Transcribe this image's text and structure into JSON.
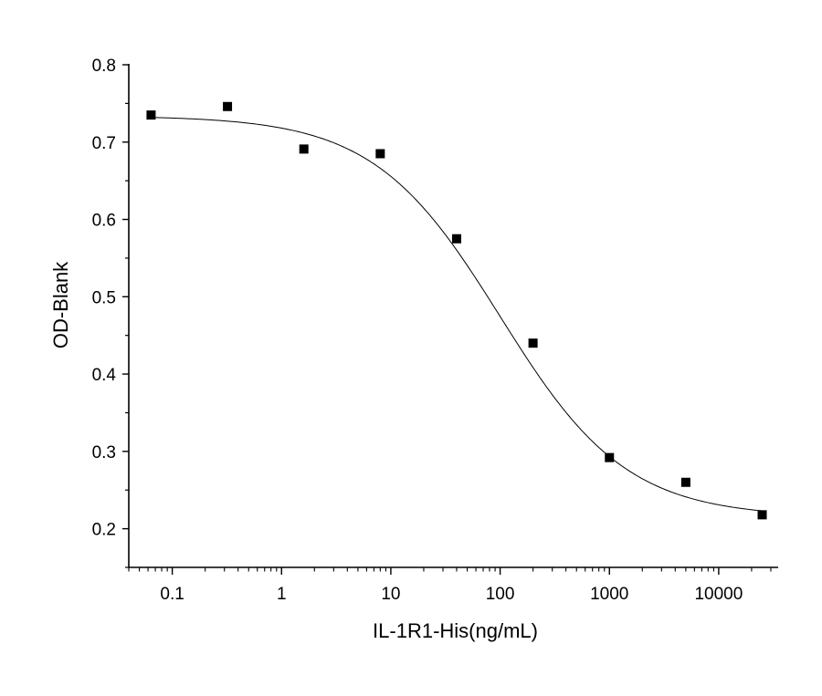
{
  "chart_data": {
    "type": "scatter",
    "title": "",
    "xlabel": "IL-1R1-His(ng/mL)",
    "ylabel": "OD-Blank",
    "x_scale": "log",
    "xlim": [
      0.04,
      35000
    ],
    "ylim": [
      0.15,
      0.8
    ],
    "x_ticks": [
      0.1,
      1,
      10,
      100,
      1000,
      10000
    ],
    "x_tick_labels": [
      "0.1",
      "1",
      "10",
      "100",
      "1000",
      "10000"
    ],
    "y_ticks": [
      0.2,
      0.3,
      0.4,
      0.5,
      0.6,
      0.7,
      0.8
    ],
    "y_tick_labels": [
      "0.2",
      "0.3",
      "0.4",
      "0.5",
      "0.6",
      "0.7",
      "0.8"
    ],
    "grid": false,
    "legend": "none",
    "series": [
      {
        "kind": "points",
        "marker": "square",
        "color": "#000000",
        "x": [
          0.064,
          0.32,
          1.6,
          8,
          40,
          200,
          1000,
          5000,
          25000
        ],
        "y": [
          0.735,
          0.746,
          0.691,
          0.685,
          0.575,
          0.44,
          0.292,
          0.26,
          0.218
        ]
      },
      {
        "kind": "fit_curve",
        "model": "4PL",
        "color": "#000000",
        "top": 0.734,
        "bottom": 0.215,
        "ec50": 100,
        "hill": 0.75,
        "x_from": 0.064,
        "x_to": 25000
      }
    ]
  }
}
